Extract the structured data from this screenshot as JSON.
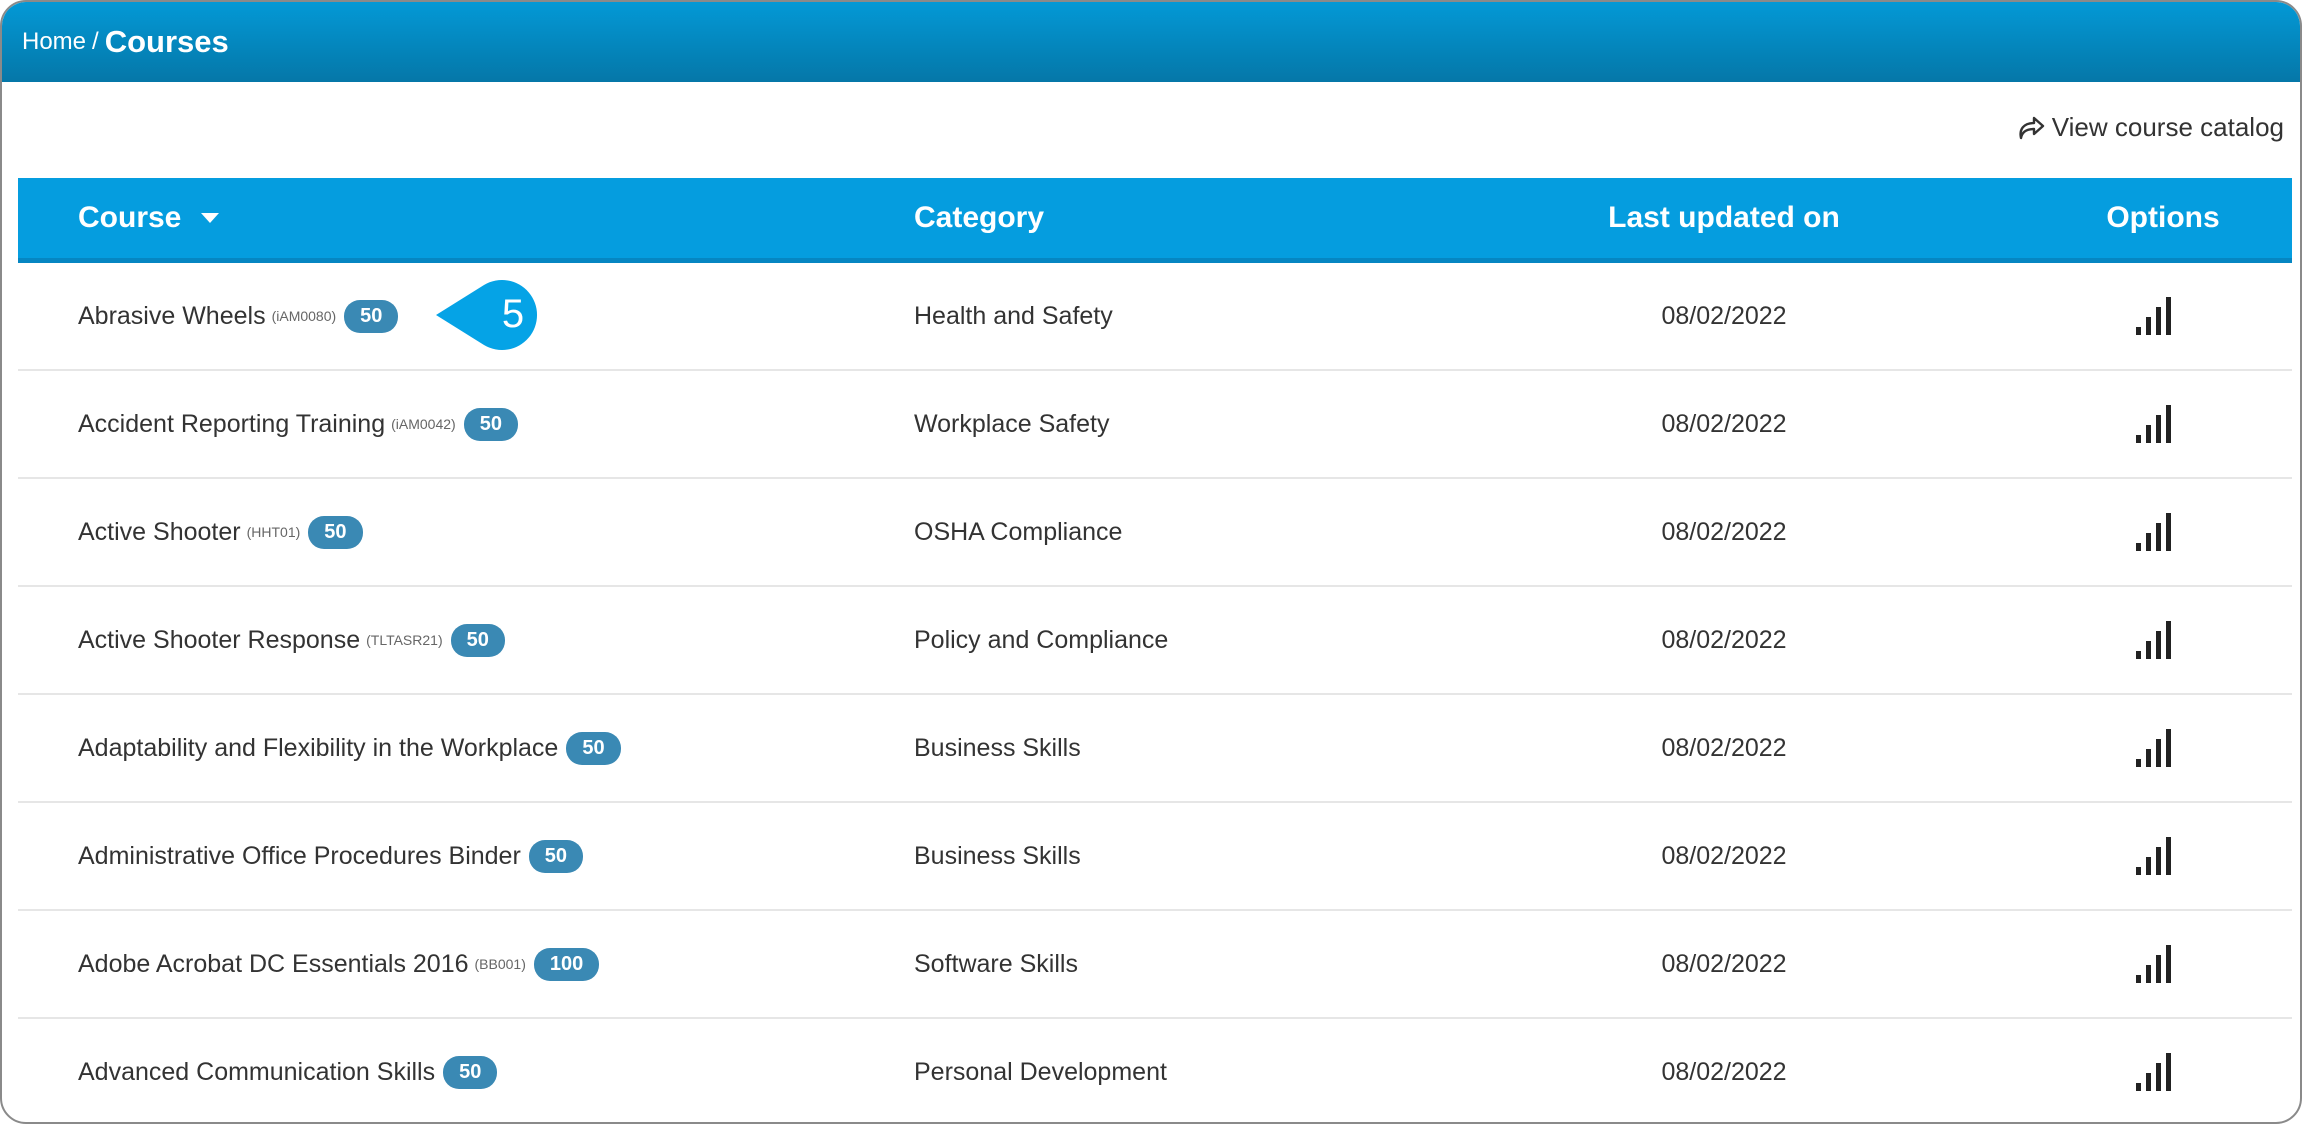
{
  "breadcrumb": {
    "home": "Home",
    "separator": "/",
    "current": "Courses"
  },
  "catalog_link": "View course catalog",
  "columns": {
    "course": "Course",
    "category": "Category",
    "updated": "Last updated on",
    "options": "Options"
  },
  "colors": {
    "header": "#059ddf",
    "badge": "#3a89b4",
    "callout": "#05a3e6"
  },
  "callout": {
    "number": "5"
  },
  "rows": [
    {
      "name": "Abrasive Wheels",
      "code": "(iAM0080)",
      "badge": "50",
      "category": "Health and Safety",
      "date": "08/02/2022"
    },
    {
      "name": "Accident Reporting Training",
      "code": "(iAM0042)",
      "badge": "50",
      "category": "Workplace Safety",
      "date": "08/02/2022"
    },
    {
      "name": "Active Shooter",
      "code": "(HHT01)",
      "badge": "50",
      "category": "OSHA Compliance",
      "date": "08/02/2022"
    },
    {
      "name": "Active Shooter Response",
      "code": "(TLTASR21)",
      "badge": "50",
      "category": "Policy and Compliance",
      "date": "08/02/2022"
    },
    {
      "name": "Adaptability and Flexibility in the Workplace",
      "code": "",
      "badge": "50",
      "category": "Business Skills",
      "date": "08/02/2022"
    },
    {
      "name": "Administrative Office Procedures Binder",
      "code": "",
      "badge": "50",
      "category": "Business Skills",
      "date": "08/02/2022"
    },
    {
      "name": "Adobe Acrobat DC Essentials 2016",
      "code": "(BB001)",
      "badge": "100",
      "category": "Software Skills",
      "date": "08/02/2022"
    },
    {
      "name": "Advanced Communication Skills",
      "code": "",
      "badge": "50",
      "category": "Personal Development",
      "date": "08/02/2022"
    }
  ]
}
